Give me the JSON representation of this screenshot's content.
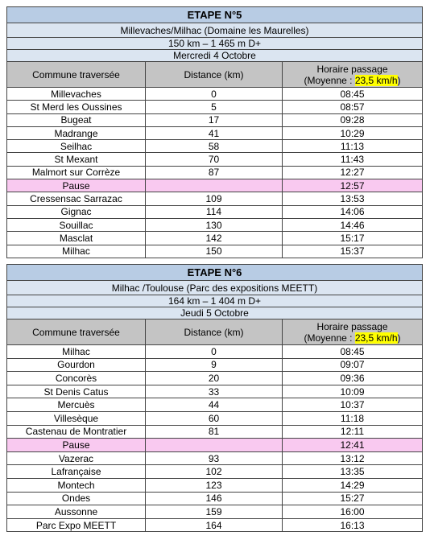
{
  "tables": [
    {
      "title": "ETAPE N°5",
      "route": "Millevaches/Milhac (Domaine les Maurelles)",
      "profile": "150 km – 1 465 m D+",
      "date": "Mercredi 4 Octobre",
      "header": {
        "commune": "Commune traversée",
        "distance": "Distance (km)",
        "time": "Horaire passage",
        "pace_prefix": "(Moyenne :",
        "pace": "23,5 km/h",
        "pace_suffix": ")"
      },
      "rows": [
        [
          "Millevaches",
          0,
          "08:45"
        ],
        [
          "St Merd les Oussines",
          5,
          "08:57"
        ],
        [
          "Bugeat",
          17,
          "09:28"
        ],
        [
          "Madrange",
          41,
          "10:29"
        ],
        [
          "Seilhac",
          58,
          "11:13"
        ],
        [
          "St Mexant",
          70,
          "11:43"
        ],
        [
          "Malmort sur Corrèze",
          87,
          "12:27"
        ],
        [
          "Pause",
          null,
          "12:57"
        ],
        [
          "Cressensac Sarrazac",
          109,
          "13:53"
        ],
        [
          "Gignac",
          114,
          "14:06"
        ],
        [
          "Souillac",
          130,
          "14:46"
        ],
        [
          "Masclat",
          142,
          "15:17"
        ],
        [
          "Milhac",
          150,
          "15:37"
        ]
      ]
    },
    {
      "title": "ETAPE N°6",
      "route": "Milhac /Toulouse (Parc des expositions MEETT)",
      "profile": "164 km – 1 404 m D+",
      "date": "Jeudi 5 Octobre",
      "header": {
        "commune": "Commune traversée",
        "distance": "Distance (km)",
        "time": "Horaire passage",
        "pace_prefix": "(Moyenne :",
        "pace": "23,5 km/h",
        "pace_suffix": ")"
      },
      "rows": [
        [
          "Milhac",
          0,
          "08:45"
        ],
        [
          "Gourdon",
          9,
          "09:07"
        ],
        [
          "Concorès",
          20,
          "09:36"
        ],
        [
          "St Denis Catus",
          33,
          "10:09"
        ],
        [
          "Mercuès",
          44,
          "10:37"
        ],
        [
          "Villesèque",
          60,
          "11:18"
        ],
        [
          "Castenau de Montratier",
          81,
          "12:11"
        ],
        [
          "Pause",
          null,
          "12:41"
        ],
        [
          "Vazerac",
          93,
          "13:12"
        ],
        [
          "Lafrançaise",
          102,
          "13:35"
        ],
        [
          "Montech",
          123,
          "14:29"
        ],
        [
          "Ondes",
          146,
          "15:27"
        ],
        [
          "Aussonne",
          159,
          "16:00"
        ],
        [
          "Parc Expo MEETT",
          164,
          "16:13"
        ]
      ]
    }
  ]
}
